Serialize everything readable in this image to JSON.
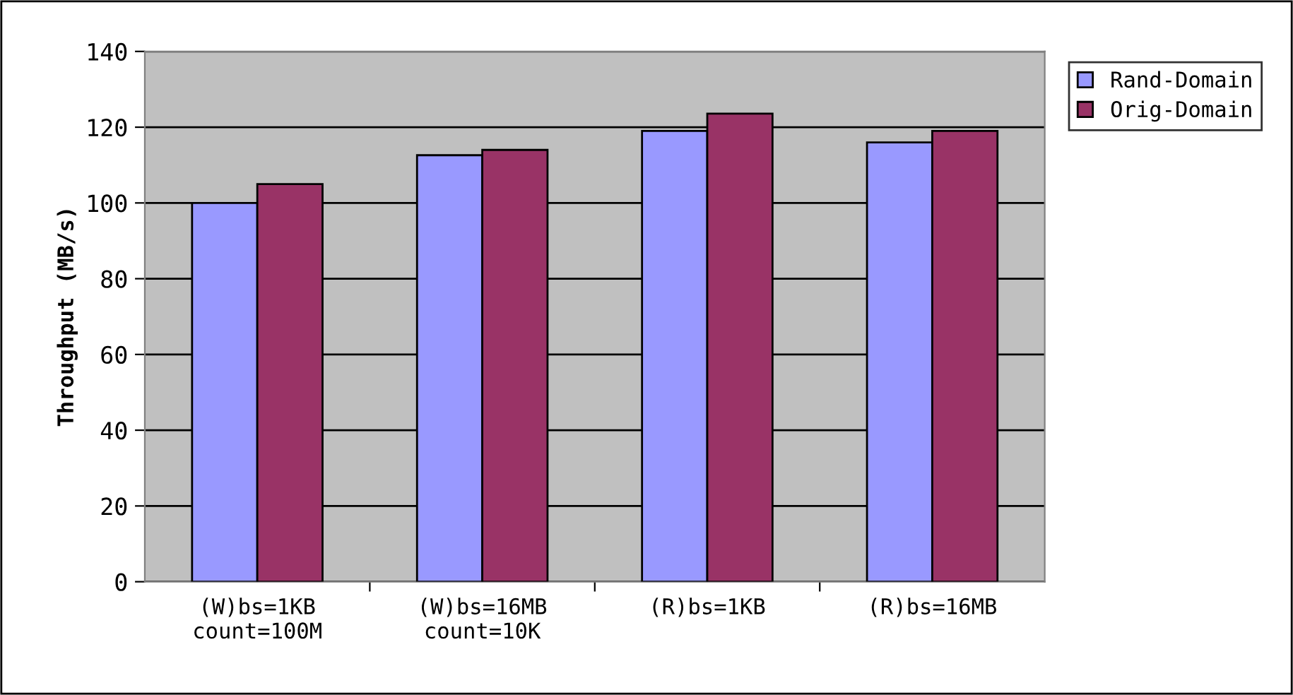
{
  "chart_data": {
    "type": "bar",
    "ylabel": "Throughput (MB/s)",
    "categories": [
      "(W)bs=1KB\ncount=100M",
      "(W)bs=16MB\ncount=10K",
      "(R)bs=1KB",
      "(R)bs=16MB"
    ],
    "series": [
      {
        "name": "Rand-Domain",
        "color": "#9999ff",
        "values": [
          100,
          112.6,
          119,
          116
        ]
      },
      {
        "name": "Orig-Domain",
        "color": "#993366",
        "values": [
          105,
          114,
          123.6,
          119
        ]
      }
    ],
    "ylim": [
      0,
      140
    ],
    "yticks": [
      0,
      20,
      40,
      60,
      80,
      100,
      120,
      140
    ],
    "grid": "y",
    "legend": "top right"
  }
}
